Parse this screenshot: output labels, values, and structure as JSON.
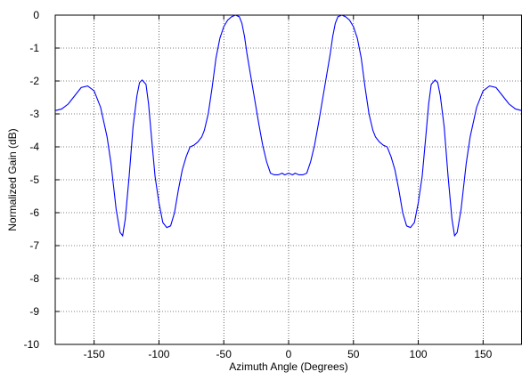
{
  "chart_data": {
    "type": "line",
    "title": "",
    "xlabel": "Azimuth Angle (Degrees)",
    "ylabel": "Normalized Gain (dB)",
    "xlim": [
      -180,
      180
    ],
    "ylim": [
      -10,
      0
    ],
    "xticks": [
      -150,
      -100,
      -50,
      0,
      50,
      100,
      150
    ],
    "yticks": [
      0,
      -1,
      -2,
      -3,
      -4,
      -5,
      -6,
      -7,
      -8,
      -9,
      -10
    ],
    "grid": true,
    "line_color": "#0000ff",
    "series": [
      {
        "x": [
          -180,
          -175,
          -170,
          -165,
          -160,
          -155,
          -150,
          -145,
          -140,
          -137,
          -135,
          -133,
          -130,
          -128,
          -126,
          -123,
          -120,
          -117,
          -115,
          -113,
          -110,
          -108,
          -106,
          -103,
          -100,
          -97,
          -94,
          -91,
          -88,
          -85,
          -82,
          -79,
          -76,
          -73,
          -70,
          -67,
          -65,
          -62,
          -59,
          -56,
          -53,
          -50,
          -47,
          -44,
          -41,
          -38,
          -36,
          -34,
          -32,
          -29,
          -26,
          -23,
          -20,
          -17,
          -14,
          -11,
          -8,
          -5,
          -3,
          0,
          3,
          5,
          8,
          11,
          14,
          17,
          20,
          23,
          26,
          29,
          32,
          34,
          36,
          38,
          41,
          44,
          47,
          50,
          53,
          56,
          59,
          62,
          65,
          67,
          70,
          73,
          76,
          79,
          82,
          85,
          88,
          91,
          94,
          97,
          100,
          103,
          106,
          108,
          110,
          113,
          115,
          117,
          120,
          123,
          126,
          128,
          130,
          133,
          135,
          137,
          140,
          145,
          150,
          155,
          160,
          165,
          170,
          175,
          180
        ],
        "y": [
          -2.9,
          -2.85,
          -2.7,
          -2.45,
          -2.2,
          -2.15,
          -2.3,
          -2.8,
          -3.7,
          -4.5,
          -5.2,
          -5.9,
          -6.6,
          -6.7,
          -6.2,
          -4.9,
          -3.4,
          -2.45,
          -2.05,
          -1.97,
          -2.1,
          -2.7,
          -3.6,
          -4.9,
          -5.7,
          -6.3,
          -6.45,
          -6.4,
          -6.0,
          -5.3,
          -4.7,
          -4.3,
          -4.0,
          -3.95,
          -3.85,
          -3.7,
          -3.5,
          -3.0,
          -2.2,
          -1.3,
          -0.7,
          -0.35,
          -0.15,
          -0.05,
          0.0,
          -0.05,
          -0.25,
          -0.65,
          -1.2,
          -1.9,
          -2.6,
          -3.3,
          -3.95,
          -4.45,
          -4.8,
          -4.85,
          -4.85,
          -4.8,
          -4.85,
          -4.8,
          -4.85,
          -4.8,
          -4.85,
          -4.85,
          -4.8,
          -4.45,
          -3.95,
          -3.3,
          -2.6,
          -1.9,
          -1.2,
          -0.65,
          -0.25,
          -0.05,
          0.0,
          -0.05,
          -0.15,
          -0.35,
          -0.7,
          -1.3,
          -2.2,
          -3.0,
          -3.5,
          -3.7,
          -3.85,
          -3.95,
          -4.0,
          -4.3,
          -4.7,
          -5.3,
          -6.0,
          -6.4,
          -6.45,
          -6.3,
          -5.7,
          -4.9,
          -3.6,
          -2.7,
          -2.1,
          -1.97,
          -2.05,
          -2.45,
          -3.4,
          -4.9,
          -6.2,
          -6.7,
          -6.6,
          -5.9,
          -5.2,
          -4.5,
          -3.7,
          -2.8,
          -2.3,
          -2.15,
          -2.2,
          -2.45,
          -2.7,
          -2.85,
          -2.9
        ]
      }
    ]
  }
}
